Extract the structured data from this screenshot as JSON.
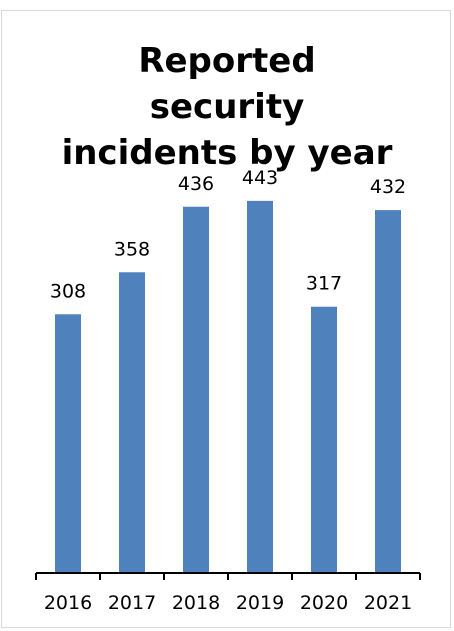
{
  "chart_data": {
    "type": "bar",
    "title": "Reported security incidents by year",
    "categories": [
      "2016",
      "2017",
      "2018",
      "2019",
      "2020",
      "2021"
    ],
    "values": [
      308,
      358,
      436,
      443,
      317,
      432
    ],
    "data_labels": [
      "308",
      "358",
      "436",
      "443",
      "317",
      "432"
    ],
    "xlabel": "",
    "ylabel": "",
    "ylim": [
      0,
      500
    ],
    "grid": false,
    "legend": "none",
    "bar_color": "#4f81bd"
  }
}
